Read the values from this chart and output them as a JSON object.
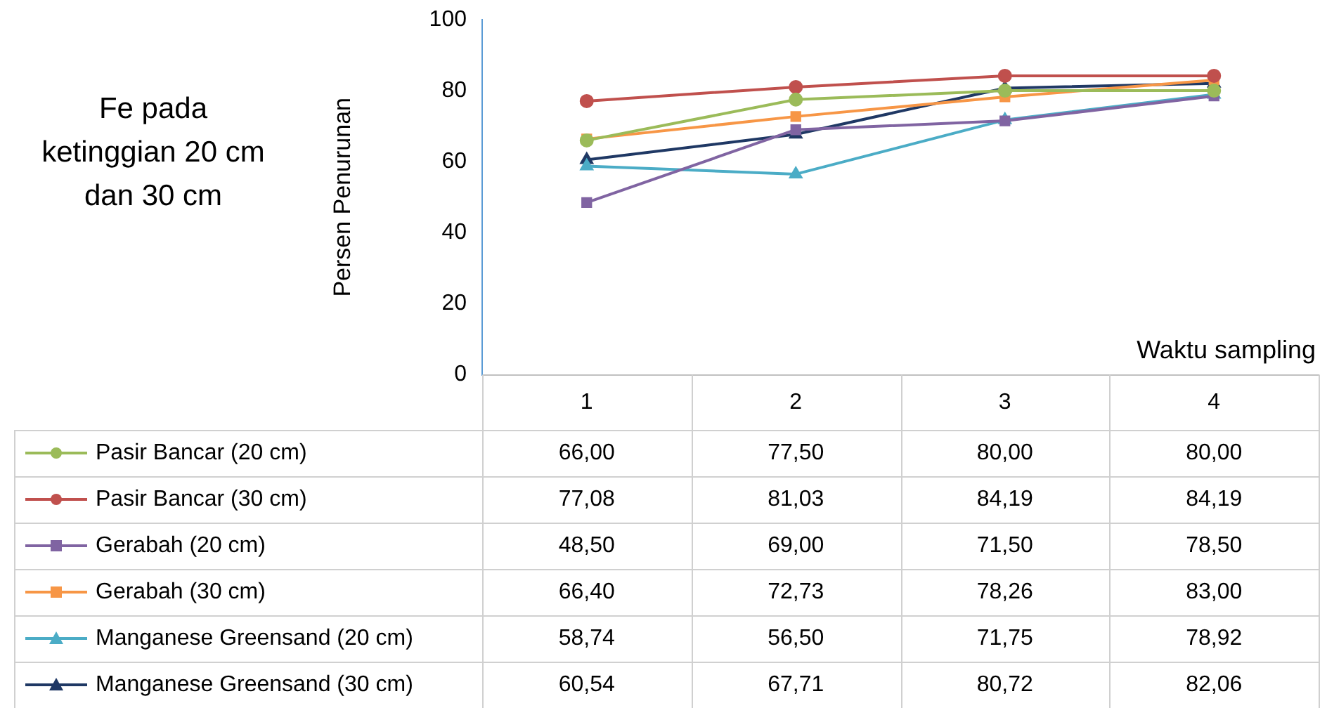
{
  "chart_data": {
    "type": "line",
    "title": "Fe pada ketinggian 20 cm dan 30 cm",
    "ylabel": "Persen Penurunan",
    "xlabel": "Waktu sampling",
    "categories": [
      "1",
      "2",
      "3",
      "4"
    ],
    "ylim": [
      0,
      100
    ],
    "yticks": [
      0,
      20,
      40,
      60,
      80,
      100
    ],
    "grid": false,
    "legend": "bottom",
    "data_labels": true,
    "series": [
      {
        "name": "Pasir Bancar (20 cm)",
        "color": "#9bbb59",
        "marker": "circle",
        "values": [
          66.0,
          77.5,
          80.0,
          80.0
        ],
        "value_labels": [
          "66,00",
          "77,50",
          "80,00",
          "80,00"
        ]
      },
      {
        "name": "Pasir Bancar (30 cm)",
        "color": "#c0504d",
        "marker": "circle",
        "values": [
          77.08,
          81.03,
          84.19,
          84.19
        ],
        "value_labels": [
          "77,08",
          "81,03",
          "84,19",
          "84,19"
        ]
      },
      {
        "name": "Gerabah (20 cm)",
        "color": "#8064a2",
        "marker": "square",
        "values": [
          48.5,
          69.0,
          71.5,
          78.5
        ],
        "value_labels": [
          "48,50",
          "69,00",
          "71,50",
          "78,50"
        ]
      },
      {
        "name": "Gerabah (30 cm)",
        "color": "#f79646",
        "marker": "square",
        "values": [
          66.4,
          72.73,
          78.26,
          83.0
        ],
        "value_labels": [
          "66,40",
          "72,73",
          "78,26",
          "83,00"
        ]
      },
      {
        "name": "Manganese Greensand (20 cm)",
        "color": "#4bacc6",
        "marker": "triangle",
        "values": [
          58.74,
          56.5,
          71.75,
          78.92
        ],
        "value_labels": [
          "58,74",
          "56,50",
          "71,75",
          "78,92"
        ]
      },
      {
        "name": "Manganese Greensand (30 cm)",
        "color": "#1f3864",
        "marker": "triangle",
        "values": [
          60.54,
          67.71,
          80.72,
          82.06
        ],
        "value_labels": [
          "60,54",
          "67,71",
          "80,72",
          "82,06"
        ]
      }
    ]
  }
}
